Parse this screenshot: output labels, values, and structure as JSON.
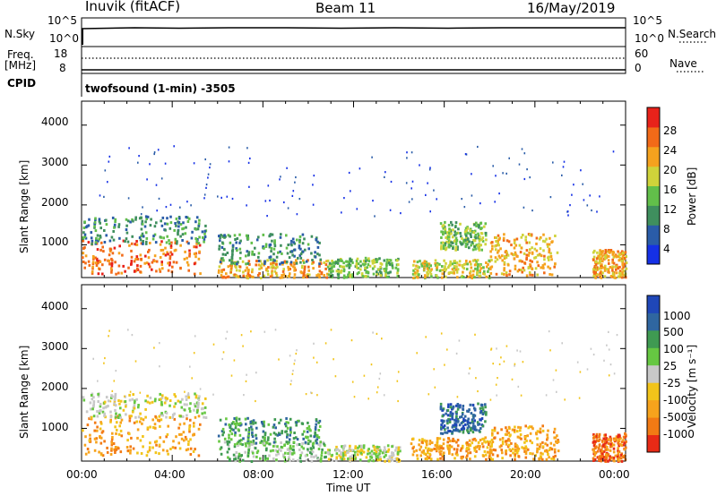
{
  "header": {
    "station": "Inuvik (fitACF)",
    "beam": "Beam 11",
    "date": "16/May/2019"
  },
  "top_strips": {
    "nsky_label": "N.Sky",
    "nsky_ticks": [
      "10^5",
      "10^0"
    ],
    "nsearch_label": "N.Search",
    "nsearch_ticks": [
      "10^5",
      "10^0"
    ],
    "freq_label": "Freq.",
    "freq_unit": "[MHz]",
    "freq_ticks": [
      "18",
      "8"
    ],
    "nave_label": "Nave",
    "nave_ticks": [
      "60",
      "0"
    ],
    "cpid_label": "CPID",
    "cpid_value": "twofsound (1-min) -3505"
  },
  "chart_data": [
    {
      "type": "heatmap",
      "title": "Power",
      "ylabel": "Slant Range [km]",
      "yticks": [
        "1000",
        "2000",
        "3000",
        "4000"
      ],
      "ylim": [
        180,
        4600
      ],
      "xlabel": "Time UT",
      "xticks": [
        "00:00",
        "04:00",
        "08:00",
        "12:00",
        "16:00",
        "20:00",
        "00:00"
      ],
      "colorbar_label": "Power [dB]",
      "colorbar_ticks": [
        "4",
        "8",
        "12",
        "16",
        "20",
        "24",
        "28"
      ],
      "colorbar_colors": [
        "#1530e6",
        "#2a5ca8",
        "#3f8f5e",
        "#62bf4a",
        "#cfd33a",
        "#f5a21e",
        "#f26a18",
        "#e8221a"
      ],
      "regions": [
        {
          "t0": 0.0,
          "t1": 5.2,
          "r0": 300,
          "r1": 1150,
          "level": 6
        },
        {
          "t0": 0.0,
          "t1": 5.5,
          "r0": 1050,
          "r1": 1750,
          "level": 2
        },
        {
          "t0": 6.0,
          "t1": 10.8,
          "r0": 200,
          "r1": 650,
          "level": 5
        },
        {
          "t0": 6.0,
          "t1": 10.5,
          "r0": 550,
          "r1": 1300,
          "level": 2
        },
        {
          "t0": 10.8,
          "t1": 14.0,
          "r0": 200,
          "r1": 700,
          "level": 3
        },
        {
          "t0": 14.5,
          "t1": 18.0,
          "r0": 200,
          "r1": 650,
          "level": 4
        },
        {
          "t0": 15.8,
          "t1": 17.8,
          "r0": 900,
          "r1": 1600,
          "level": 3
        },
        {
          "t0": 18.0,
          "t1": 21.0,
          "r0": 250,
          "r1": 1300,
          "level": 5
        },
        {
          "t0": 22.5,
          "t1": 24.0,
          "r0": 200,
          "r1": 900,
          "level": 5
        }
      ]
    },
    {
      "type": "heatmap",
      "title": "Velocity",
      "ylabel": "Slant Range [km]",
      "yticks": [
        "1000",
        "2000",
        "3000",
        "4000"
      ],
      "ylim": [
        180,
        4600
      ],
      "xlabel": "Time UT",
      "xticks": [
        "00:00",
        "04:00",
        "08:00",
        "12:00",
        "16:00",
        "20:00",
        "00:00"
      ],
      "colorbar_label": "Velocity [m s⁻¹]",
      "colorbar_ticks": [
        "1000",
        "500",
        "100",
        "25",
        "-25",
        "-100",
        "-500",
        "-1000"
      ],
      "colorbar_colors": [
        "#1f47b8",
        "#2f66a0",
        "#3f9a52",
        "#66c742",
        "#c8c8c8",
        "#f2c41a",
        "#f7a31c",
        "#f27a14",
        "#e82a16"
      ],
      "regions": [
        {
          "t0": 0.0,
          "t1": 5.2,
          "r0": 350,
          "r1": 1350,
          "level": 6
        },
        {
          "t0": 0.0,
          "t1": 5.5,
          "r0": 1300,
          "r1": 1900,
          "level": 4
        },
        {
          "t0": 6.0,
          "t1": 10.8,
          "r0": 200,
          "r1": 700,
          "level": 3
        },
        {
          "t0": 6.0,
          "t1": 10.5,
          "r0": 650,
          "r1": 1300,
          "level": 2
        },
        {
          "t0": 10.8,
          "t1": 14.0,
          "r0": 200,
          "r1": 600,
          "level": 4
        },
        {
          "t0": 14.5,
          "t1": 18.0,
          "r0": 250,
          "r1": 800,
          "level": 6
        },
        {
          "t0": 15.8,
          "t1": 17.8,
          "r0": 900,
          "r1": 1650,
          "level": 1
        },
        {
          "t0": 18.0,
          "t1": 21.0,
          "r0": 250,
          "r1": 1100,
          "level": 6
        },
        {
          "t0": 22.5,
          "t1": 24.0,
          "r0": 200,
          "r1": 900,
          "level": 7
        }
      ]
    }
  ]
}
